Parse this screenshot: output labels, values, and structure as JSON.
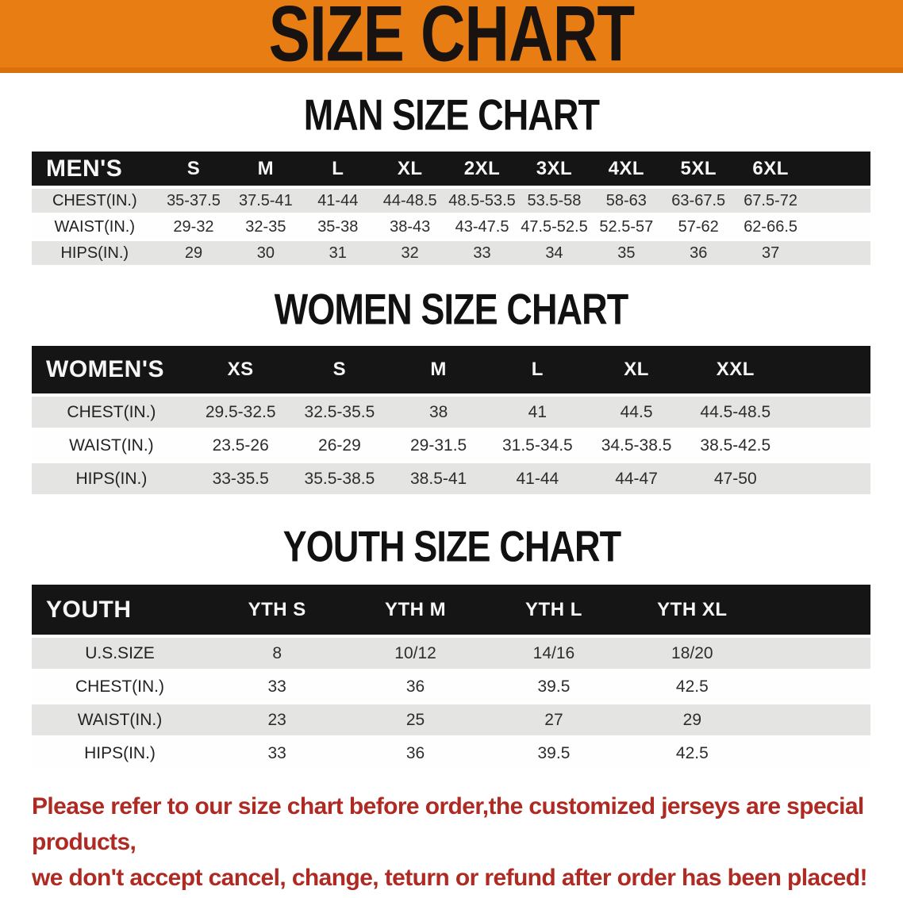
{
  "banner": {
    "title": "SIZE CHART",
    "bg_color": "#E87E13"
  },
  "sections": [
    {
      "id": "men",
      "heading": "MAN SIZE CHART",
      "table": {
        "header_label": "MEN'S",
        "columns": [
          "S",
          "M",
          "L",
          "XL",
          "2XL",
          "3XL",
          "4XL",
          "5XL",
          "6XL"
        ],
        "rows": [
          {
            "label": "CHEST(IN.)",
            "values": [
              "35-37.5",
              "37.5-41",
              "41-44",
              "44-48.5",
              "48.5-53.5",
              "53.5-58",
              "58-63",
              "63-67.5",
              "67.5-72"
            ]
          },
          {
            "label": "WAIST(IN.)",
            "values": [
              "29-32",
              "32-35",
              "35-38",
              "38-43",
              "43-47.5",
              "47.5-52.5",
              "52.5-57",
              "57-62",
              "62-66.5"
            ]
          },
          {
            "label": "HIPS(IN.)",
            "values": [
              "29",
              "30",
              "31",
              "32",
              "33",
              "34",
              "35",
              "36",
              "37"
            ]
          }
        ]
      }
    },
    {
      "id": "women",
      "heading": "WOMEN SIZE CHART",
      "table": {
        "header_label": "WOMEN'S",
        "columns": [
          "XS",
          "S",
          "M",
          "L",
          "XL",
          "XXL"
        ],
        "rows": [
          {
            "label": "CHEST(IN.)",
            "values": [
              "29.5-32.5",
              "32.5-35.5",
              "38",
              "41",
              "44.5",
              "44.5-48.5"
            ]
          },
          {
            "label": "WAIST(IN.)",
            "values": [
              "23.5-26",
              "26-29",
              "29-31.5",
              "31.5-34.5",
              "34.5-38.5",
              "38.5-42.5"
            ]
          },
          {
            "label": "HIPS(IN.)",
            "values": [
              "33-35.5",
              "35.5-38.5",
              "38.5-41",
              "41-44",
              "44-47",
              "47-50"
            ]
          }
        ]
      }
    },
    {
      "id": "youth",
      "heading": "YOUTH SIZE CHART",
      "table": {
        "header_label": "YOUTH",
        "columns": [
          "YTH S",
          "YTH M",
          "YTH L",
          "YTH XL"
        ],
        "rows": [
          {
            "label": "U.S.SIZE",
            "values": [
              "8",
              "10/12",
              "14/16",
              "18/20"
            ]
          },
          {
            "label": "CHEST(IN.)",
            "values": [
              "33",
              "36",
              "39.5",
              "42.5"
            ]
          },
          {
            "label": "WAIST(IN.)",
            "values": [
              "23",
              "25",
              "27",
              "29"
            ]
          },
          {
            "label": "HIPS(IN.)",
            "values": [
              "33",
              "36",
              "39.5",
              "42.5"
            ]
          }
        ]
      }
    }
  ],
  "disclaimer": {
    "color": "#AE2A23",
    "line1": "Please refer to our size chart before order,the customized jerseys are special products,",
    "line2": "we don't accept cancel, change, teturn or refund after order has been placed!"
  }
}
